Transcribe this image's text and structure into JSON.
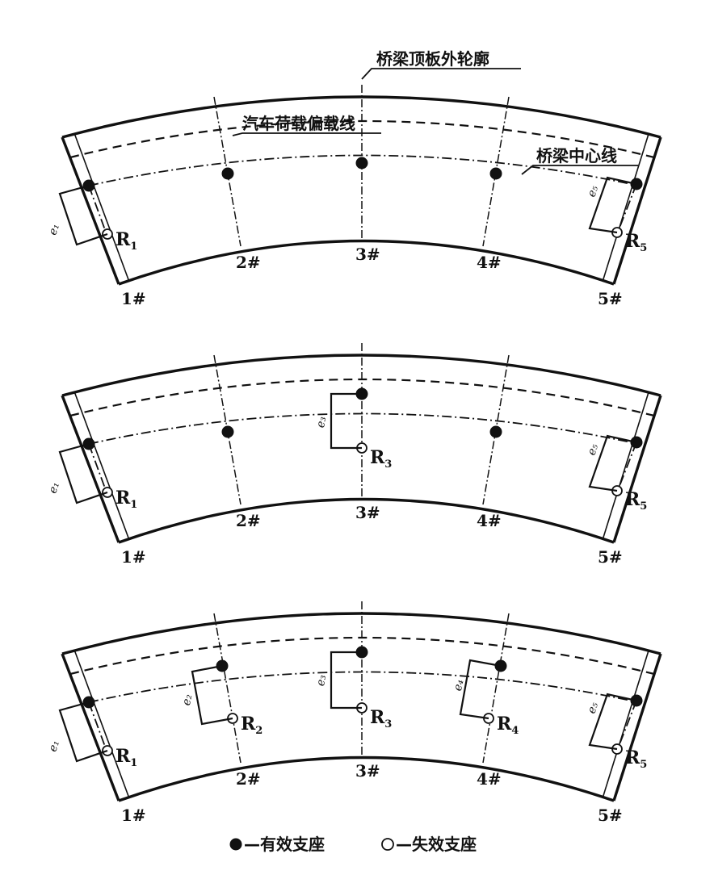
{
  "callouts": {
    "outer_contour": "桥梁顶板外轮廓",
    "load_line": "汽车荷载偏载线",
    "center_line": "桥梁中心线"
  },
  "pier_labels": [
    "1#",
    "2#",
    "3#",
    "4#",
    "5#"
  ],
  "support_labels": {
    "R1": {
      "main": "R",
      "sub": "1"
    },
    "R2": {
      "main": "R",
      "sub": "2"
    },
    "R3": {
      "main": "R",
      "sub": "3"
    },
    "R4": {
      "main": "R",
      "sub": "4"
    },
    "R5": {
      "main": "R",
      "sub": "5"
    }
  },
  "eccentricity_labels": {
    "e1": "e₁",
    "e2": "e₂",
    "e3": "e₃",
    "e4": "e₄",
    "e5": "e₅"
  },
  "panels": [
    {
      "id": "panel-1",
      "single_support_piers": [
        "1#",
        "5#"
      ]
    },
    {
      "id": "panel-2",
      "single_support_piers": [
        "1#",
        "3#",
        "5#"
      ]
    },
    {
      "id": "panel-3",
      "single_support_piers": [
        "1#",
        "2#",
        "3#",
        "4#",
        "5#"
      ]
    }
  ],
  "legend": {
    "effective_support": "—有效支座",
    "failed_support": "—失效支座"
  }
}
